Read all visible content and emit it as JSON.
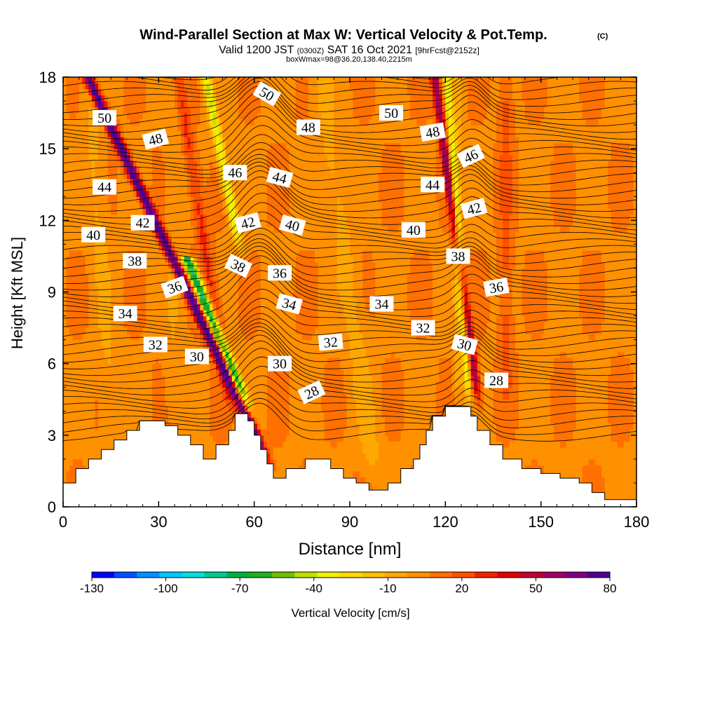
{
  "chart_data": {
    "type": "heatmap",
    "title": "Wind-Parallel Section at Max W: Vertical Velocity & Pot.Temp.",
    "title_mark": "(C)",
    "subtitle": {
      "valid": "Valid 1200 JST",
      "utc": "(0300Z)",
      "date": "SAT 16 Oct 2021",
      "fcst": "[9hrFcst@2152z]",
      "box": "boxWmax=98@36.20,138.40,2215m"
    },
    "xlabel": "Distance [nm]",
    "ylabel": "Height [Kft MSL]",
    "xlim": [
      0,
      180
    ],
    "ylim": [
      0,
      18
    ],
    "xticks": [
      0,
      30,
      60,
      90,
      120,
      150,
      180
    ],
    "yticks": [
      0,
      3,
      6,
      9,
      12,
      15,
      18
    ],
    "colorbar": {
      "label": "Vertical Velocity [cm/s]",
      "ticks": [
        "-130",
        "-100",
        "-70",
        "-40",
        "-10",
        "20",
        "50",
        "80"
      ],
      "range": [
        -130,
        80
      ],
      "colors": [
        "#0000ff",
        "#0050ff",
        "#0090ff",
        "#00c8ff",
        "#00e0e0",
        "#00c890",
        "#00b040",
        "#20b020",
        "#70c000",
        "#c0e000",
        "#f0f000",
        "#ffd800",
        "#ffc000",
        "#ffa800",
        "#ff9000",
        "#ff7000",
        "#ff5000",
        "#f02000",
        "#e00000",
        "#c00030",
        "#a00060",
        "#800080",
        "#500090"
      ]
    },
    "terrain": [
      [
        0,
        1.0
      ],
      [
        4,
        1.0
      ],
      [
        4,
        1.6
      ],
      [
        8,
        1.6
      ],
      [
        8,
        2.0
      ],
      [
        12,
        2.0
      ],
      [
        12,
        2.4
      ],
      [
        16,
        2.4
      ],
      [
        16,
        2.8
      ],
      [
        20,
        2.8
      ],
      [
        20,
        3.2
      ],
      [
        24,
        3.2
      ],
      [
        24,
        3.6
      ],
      [
        32,
        3.6
      ],
      [
        32,
        3.4
      ],
      [
        36,
        3.4
      ],
      [
        36,
        3.0
      ],
      [
        40,
        3.0
      ],
      [
        40,
        2.6
      ],
      [
        44,
        2.6
      ],
      [
        44,
        2.0
      ],
      [
        48,
        2.0
      ],
      [
        48,
        2.6
      ],
      [
        52,
        2.6
      ],
      [
        52,
        3.2
      ],
      [
        54,
        3.2
      ],
      [
        54,
        3.9
      ],
      [
        58,
        3.9
      ],
      [
        58,
        3.6
      ],
      [
        60,
        3.6
      ],
      [
        60,
        3.0
      ],
      [
        62,
        3.0
      ],
      [
        62,
        2.4
      ],
      [
        64,
        2.4
      ],
      [
        64,
        1.8
      ],
      [
        66,
        1.8
      ],
      [
        66,
        1.2
      ],
      [
        70,
        1.2
      ],
      [
        70,
        1.6
      ],
      [
        76,
        1.6
      ],
      [
        76,
        2.0
      ],
      [
        84,
        2.0
      ],
      [
        84,
        1.6
      ],
      [
        88,
        1.6
      ],
      [
        88,
        1.2
      ],
      [
        92,
        1.2
      ],
      [
        92,
        1.0
      ],
      [
        96,
        1.0
      ],
      [
        96,
        0.7
      ],
      [
        102,
        0.7
      ],
      [
        102,
        1.0
      ],
      [
        106,
        1.0
      ],
      [
        106,
        1.6
      ],
      [
        110,
        1.6
      ],
      [
        110,
        2.0
      ],
      [
        112,
        2.0
      ],
      [
        112,
        2.6
      ],
      [
        114,
        2.6
      ],
      [
        114,
        3.2
      ],
      [
        116,
        3.2
      ],
      [
        116,
        3.8
      ],
      [
        120,
        3.8
      ],
      [
        120,
        4.2
      ],
      [
        128,
        4.2
      ],
      [
        128,
        3.8
      ],
      [
        130,
        3.8
      ],
      [
        130,
        3.2
      ],
      [
        134,
        3.2
      ],
      [
        134,
        2.6
      ],
      [
        138,
        2.6
      ],
      [
        138,
        2.0
      ],
      [
        144,
        2.0
      ],
      [
        144,
        1.6
      ],
      [
        150,
        1.6
      ],
      [
        150,
        1.4
      ],
      [
        156,
        1.4
      ],
      [
        156,
        1.2
      ],
      [
        162,
        1.2
      ],
      [
        162,
        1.0
      ],
      [
        166,
        1.0
      ],
      [
        166,
        0.6
      ],
      [
        170,
        0.6
      ],
      [
        170,
        0.3
      ],
      [
        180,
        0.3
      ]
    ],
    "updrafts": [
      {
        "x": 64.5,
        "slope": -3.5,
        "width": 1.6,
        "peak": 85,
        "base": 1.8,
        "top": 18
      },
      {
        "x": 130.5,
        "slope": -1.0,
        "width": 1.3,
        "peak": 55,
        "base": 4.2,
        "top": 18
      },
      {
        "x": 53,
        "slope": -1.2,
        "width": 2.0,
        "peak": 22,
        "base": 3.8,
        "top": 18
      },
      {
        "x": 139,
        "slope": 0.0,
        "width": 2.0,
        "peak": 14,
        "base": 4.0,
        "top": 18
      }
    ],
    "downdrafts": [
      {
        "x": 58.5,
        "slope": -3.0,
        "width": 1.8,
        "peak": -85,
        "base": 3.9,
        "top": 10.5
      },
      {
        "x": 56,
        "slope": -1.5,
        "width": 1.6,
        "peak": -45,
        "base": 10.5,
        "top": 18
      },
      {
        "x": 127.5,
        "slope": -0.5,
        "width": 1.2,
        "peak": -40,
        "base": 4.2,
        "top": 18
      },
      {
        "x": 124,
        "slope": 0.0,
        "width": 1.4,
        "peak": -15,
        "base": 4.2,
        "top": 18
      },
      {
        "x": 98,
        "slope": -1.0,
        "width": 3.5,
        "peak": -12,
        "base": 1.0,
        "top": 18
      },
      {
        "x": 16,
        "slope": -0.5,
        "width": 3.0,
        "peak": -10,
        "base": 2.5,
        "top": 18
      },
      {
        "x": 35,
        "slope": 0.0,
        "width": 3.0,
        "peak": -8,
        "base": 3.5,
        "top": 18
      }
    ],
    "isentropes": {
      "min": 24,
      "max": 52,
      "step": 0.5,
      "bump_x": 62,
      "bump_amp": 1.5,
      "bump_width": 9,
      "bump2_x": 128,
      "bump2_amp": 0.8,
      "bump2_width": 6
    },
    "theta_labels": [
      {
        "v": "50",
        "x": 13,
        "y": 16.3,
        "rot": 0
      },
      {
        "v": "48",
        "x": 29,
        "y": 15.4,
        "rot": -15
      },
      {
        "v": "46",
        "x": 54,
        "y": 14.0,
        "rot": 0
      },
      {
        "v": "50",
        "x": 64,
        "y": 17.3,
        "rot": 30
      },
      {
        "v": "48",
        "x": 77,
        "y": 15.9,
        "rot": 0
      },
      {
        "v": "44",
        "x": 68,
        "y": 13.8,
        "rot": 15
      },
      {
        "v": "50",
        "x": 103,
        "y": 16.5,
        "rot": 0
      },
      {
        "v": "48",
        "x": 116,
        "y": 15.7,
        "rot": -10
      },
      {
        "v": "46",
        "x": 128,
        "y": 14.7,
        "rot": -25
      },
      {
        "v": "44",
        "x": 13,
        "y": 13.4,
        "rot": 0
      },
      {
        "v": "42",
        "x": 25,
        "y": 11.9,
        "rot": 0
      },
      {
        "v": "40",
        "x": 9.5,
        "y": 11.4,
        "rot": 0
      },
      {
        "v": "42",
        "x": 58,
        "y": 11.9,
        "rot": -15
      },
      {
        "v": "40",
        "x": 72,
        "y": 11.8,
        "rot": 15
      },
      {
        "v": "40",
        "x": 110,
        "y": 11.6,
        "rot": 0
      },
      {
        "v": "44",
        "x": 116,
        "y": 13.5,
        "rot": 0
      },
      {
        "v": "42",
        "x": 129,
        "y": 12.5,
        "rot": -15
      },
      {
        "v": "38",
        "x": 22.5,
        "y": 10.3,
        "rot": 0
      },
      {
        "v": "36",
        "x": 35,
        "y": 9.2,
        "rot": -20
      },
      {
        "v": "38",
        "x": 55,
        "y": 10.1,
        "rot": 25
      },
      {
        "v": "36",
        "x": 68,
        "y": 9.8,
        "rot": 0
      },
      {
        "v": "38",
        "x": 124,
        "y": 10.5,
        "rot": 0
      },
      {
        "v": "36",
        "x": 136,
        "y": 9.2,
        "rot": -10
      },
      {
        "v": "34",
        "x": 19.5,
        "y": 8.1,
        "rot": 0
      },
      {
        "v": "34",
        "x": 71,
        "y": 8.5,
        "rot": 15
      },
      {
        "v": "34",
        "x": 100,
        "y": 8.5,
        "rot": 0
      },
      {
        "v": "32",
        "x": 29,
        "y": 6.8,
        "rot": 0
      },
      {
        "v": "30",
        "x": 42,
        "y": 6.3,
        "rot": 0
      },
      {
        "v": "32",
        "x": 84,
        "y": 6.9,
        "rot": -5
      },
      {
        "v": "32",
        "x": 113,
        "y": 7.5,
        "rot": 0
      },
      {
        "v": "30",
        "x": 68,
        "y": 6.0,
        "rot": 0
      },
      {
        "v": "28",
        "x": 78,
        "y": 4.8,
        "rot": -25
      },
      {
        "v": "30",
        "x": 126,
        "y": 6.8,
        "rot": 15
      },
      {
        "v": "28",
        "x": 136,
        "y": 5.3,
        "rot": 0
      }
    ]
  }
}
